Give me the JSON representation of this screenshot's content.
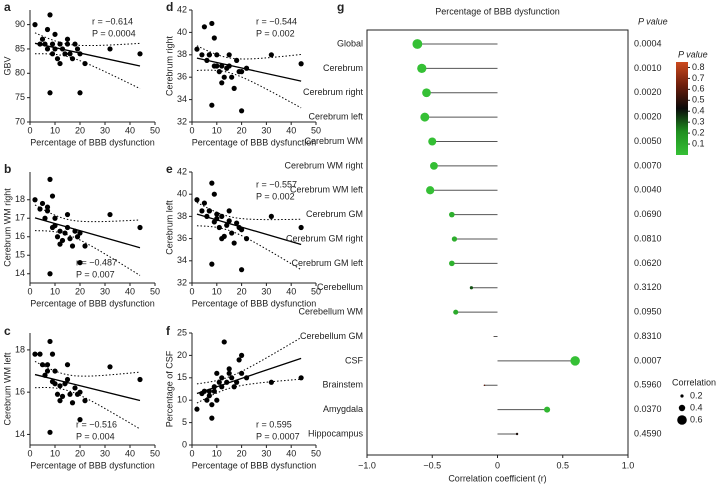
{
  "chart_data": [
    {
      "type": "scatter",
      "label": "a",
      "ylabel": "GBV",
      "xlabel": "Percentage of BBB dysfunction",
      "annotations": [
        "r = −0.614",
        "P = 0.0004"
      ],
      "xlim": [
        0,
        50
      ],
      "xticks": [
        0,
        10,
        20,
        30,
        40,
        50
      ],
      "ylim": [
        70,
        93
      ],
      "yticks": [
        70,
        75,
        80,
        85,
        90
      ],
      "color": "#000000",
      "x": [
        2,
        4,
        5,
        6,
        7,
        7,
        8,
        8,
        9,
        9,
        10,
        10,
        11,
        12,
        12,
        13,
        14,
        15,
        15,
        16,
        17,
        18,
        19,
        20,
        20,
        22,
        32,
        44
      ],
      "y": [
        90,
        86,
        87,
        86,
        85,
        89,
        92,
        76,
        86,
        84,
        85,
        88,
        83,
        86,
        82,
        85,
        84,
        86,
        87,
        84,
        83,
        86,
        85,
        76,
        84,
        82,
        85,
        84
      ]
    },
    {
      "type": "scatter",
      "label": "b",
      "ylabel": "Cerebrum WM right",
      "xlabel": "Percentage of BBB dysfunction",
      "annotations": [
        "r = −0.487",
        "P = 0.007"
      ],
      "xlim": [
        0,
        50
      ],
      "xticks": [
        0,
        10,
        20,
        30,
        40,
        50
      ],
      "ylim": [
        13.5,
        19.5
      ],
      "yticks": [
        14,
        15,
        16,
        17,
        18
      ],
      "color": "#000000",
      "x": [
        2,
        4,
        5,
        6,
        7,
        7,
        8,
        8,
        9,
        9,
        10,
        10,
        11,
        12,
        12,
        13,
        14,
        15,
        15,
        16,
        17,
        18,
        19,
        20,
        20,
        22,
        32,
        44
      ],
      "y": [
        18,
        17.5,
        17.8,
        17,
        17.4,
        17.6,
        19.1,
        14,
        18.2,
        16.5,
        17,
        16.6,
        16,
        16.3,
        15.6,
        15.8,
        16.2,
        16.5,
        17.2,
        15.9,
        15.5,
        16.3,
        16,
        14.6,
        16.2,
        15.5,
        17.2,
        16.5
      ]
    },
    {
      "type": "scatter",
      "label": "c",
      "ylabel": "Cerebrum WM left",
      "xlabel": "Percentage of BBB dysfunction",
      "annotations": [
        "r = −0.516",
        "P = 0.004"
      ],
      "xlim": [
        0,
        50
      ],
      "xticks": [
        0,
        10,
        20,
        30,
        40,
        50
      ],
      "ylim": [
        13.5,
        18.8
      ],
      "yticks": [
        14,
        16,
        18
      ],
      "color": "#000000",
      "x": [
        2,
        4,
        5,
        6,
        7,
        7,
        8,
        8,
        9,
        9,
        10,
        10,
        11,
        12,
        12,
        13,
        14,
        15,
        15,
        16,
        17,
        18,
        19,
        20,
        20,
        22,
        32,
        44
      ],
      "y": [
        17.8,
        17.8,
        17.3,
        16.8,
        17,
        17.3,
        18.4,
        14.1,
        17.8,
        16.5,
        17,
        16.4,
        15.9,
        16.3,
        15.6,
        15.8,
        16.4,
        16.6,
        17.3,
        15.9,
        15.5,
        16.2,
        15.9,
        14.7,
        16,
        15.6,
        17.2,
        16.6
      ]
    },
    {
      "type": "scatter",
      "label": "d",
      "ylabel": "Cerebrum right",
      "xlabel": "Percentage of BBB dysfunction",
      "annotations": [
        "r = −0.544",
        "P = 0.002"
      ],
      "xlim": [
        0,
        50
      ],
      "xticks": [
        0,
        10,
        20,
        30,
        40,
        50
      ],
      "ylim": [
        32,
        42
      ],
      "yticks": [
        32,
        34,
        36,
        38,
        40,
        42
      ],
      "color": "#000000",
      "x": [
        2,
        4,
        5,
        6,
        7,
        7,
        8,
        8,
        9,
        9,
        10,
        10,
        11,
        12,
        12,
        13,
        14,
        15,
        15,
        16,
        17,
        18,
        19,
        20,
        20,
        22,
        32,
        44
      ],
      "y": [
        38.5,
        38,
        40.5,
        37.5,
        38,
        38,
        40.8,
        33.5,
        39.5,
        37,
        38,
        37,
        36.5,
        37,
        35.5,
        36,
        36.8,
        37,
        38,
        36,
        35,
        37.5,
        36.5,
        33,
        36.5,
        36.8,
        38,
        37.2
      ]
    },
    {
      "type": "scatter",
      "label": "e",
      "ylabel": "Cerebrum left",
      "xlabel": "Percentage of BBB dysfunction",
      "annotations": [
        "r = −0.557",
        "P = 0.002"
      ],
      "xlim": [
        0,
        50
      ],
      "xticks": [
        0,
        10,
        20,
        30,
        40,
        50
      ],
      "ylim": [
        32,
        42
      ],
      "yticks": [
        32,
        34,
        36,
        38,
        40,
        42
      ],
      "color": "#000000",
      "x": [
        2,
        4,
        5,
        6,
        7,
        7,
        8,
        8,
        9,
        9,
        10,
        10,
        11,
        12,
        12,
        13,
        14,
        15,
        15,
        16,
        17,
        18,
        19,
        20,
        20,
        22,
        32,
        44
      ],
      "y": [
        39.5,
        38.5,
        39.2,
        38,
        38.5,
        38.5,
        41,
        33.7,
        40,
        37.5,
        38.2,
        37.8,
        37,
        38,
        36,
        36.2,
        37.2,
        37.6,
        38.5,
        36.5,
        35.6,
        37.4,
        37,
        33.2,
        36.8,
        36,
        38,
        37
      ]
    },
    {
      "type": "scatter",
      "label": "f",
      "ylabel": "Percentage of CSF",
      "xlabel": "Percentage of BBB dysfunction",
      "annotations": [
        "r = 0.595",
        "P = 0.0007"
      ],
      "xlim": [
        0,
        50
      ],
      "xticks": [
        0,
        10,
        20,
        30,
        40,
        50
      ],
      "ylim": [
        0,
        25
      ],
      "yticks": [
        0,
        5,
        10,
        15,
        20,
        25
      ],
      "color": "#000000",
      "x": [
        2,
        4,
        5,
        6,
        7,
        7,
        8,
        8,
        9,
        9,
        10,
        10,
        11,
        12,
        12,
        13,
        14,
        15,
        15,
        16,
        17,
        18,
        19,
        20,
        20,
        22,
        32,
        44
      ],
      "y": [
        8,
        11.5,
        12,
        10,
        12,
        11,
        9,
        6,
        13,
        12,
        16,
        10,
        14,
        13,
        15,
        23,
        14,
        16,
        17,
        15,
        13,
        14,
        19,
        16,
        20,
        15,
        14,
        15
      ]
    },
    {
      "type": "lollipop",
      "label": "g",
      "title": "Percentage of BBB dysfunction",
      "xlabel": "Correlation coefficient (r)",
      "p_header": "P value",
      "colorbar_title": "P value",
      "size_title": "Correlation",
      "categories": [
        "Global",
        "Cerebrum",
        "Cerebrum right",
        "Cerebrum left",
        "Cerebrum WM",
        "Cerebrum WM right",
        "Cerebrum WM left",
        "Cerebrum GM",
        "Cerebrum GM right",
        "Cerebrum GM left",
        "Cerebellum",
        "Cerebellum WM",
        "Cerebellum GM",
        "CSF",
        "Brainstem",
        "Amygdala",
        "Hippocampus"
      ],
      "values": [
        -0.614,
        -0.58,
        -0.544,
        -0.557,
        -0.5,
        -0.487,
        -0.516,
        -0.35,
        -0.33,
        -0.35,
        -0.2,
        -0.32,
        -0.03,
        0.595,
        -0.1,
        0.38,
        0.15
      ],
      "p_values": [
        {
          "value": 0.0004,
          "label": "0.0004"
        },
        {
          "value": 0.001,
          "label": "0.0010"
        },
        {
          "value": 0.002,
          "label": "0.0020"
        },
        {
          "value": 0.002,
          "label": "0.0020"
        },
        {
          "value": 0.005,
          "label": "0.0050"
        },
        {
          "value": 0.007,
          "label": "0.0070"
        },
        {
          "value": 0.004,
          "label": "0.0040"
        },
        {
          "value": 0.069,
          "label": "0.0690"
        },
        {
          "value": 0.081,
          "label": "0.0810"
        },
        {
          "value": 0.062,
          "label": "0.0620"
        },
        {
          "value": 0.312,
          "label": "0.3120"
        },
        {
          "value": 0.095,
          "label": "0.0950"
        },
        {
          "value": 0.831,
          "label": "0.8310"
        },
        0.0007,
        {
          "value": 0.596,
          "label": "0.5960"
        },
        {
          "value": 0.037,
          "label": "0.0370"
        },
        {
          "value": 0.459,
          "label": "0.4590"
        }
      ],
      "xlim": [
        -1,
        1
      ],
      "xticks": [
        {
          "value": -1,
          "label": "−1.0"
        },
        {
          "value": -0.5,
          "label": "−0.5"
        },
        0,
        0.5,
        {
          "value": 1,
          "label": "1.0"
        }
      ],
      "clim": [
        0,
        0.85
      ],
      "cticks": [
        0.1,
        0.2,
        0.3,
        0.4,
        0.5,
        0.6,
        0.7,
        0.8
      ],
      "colorscale": [
        "#35c035",
        "#1f8f1f",
        "#0a0a0a",
        "#6e1e0c",
        "#cc4a1e"
      ],
      "size_legend": [
        0.2,
        0.4,
        0.6
      ],
      "stem_color": "#555555"
    }
  ]
}
